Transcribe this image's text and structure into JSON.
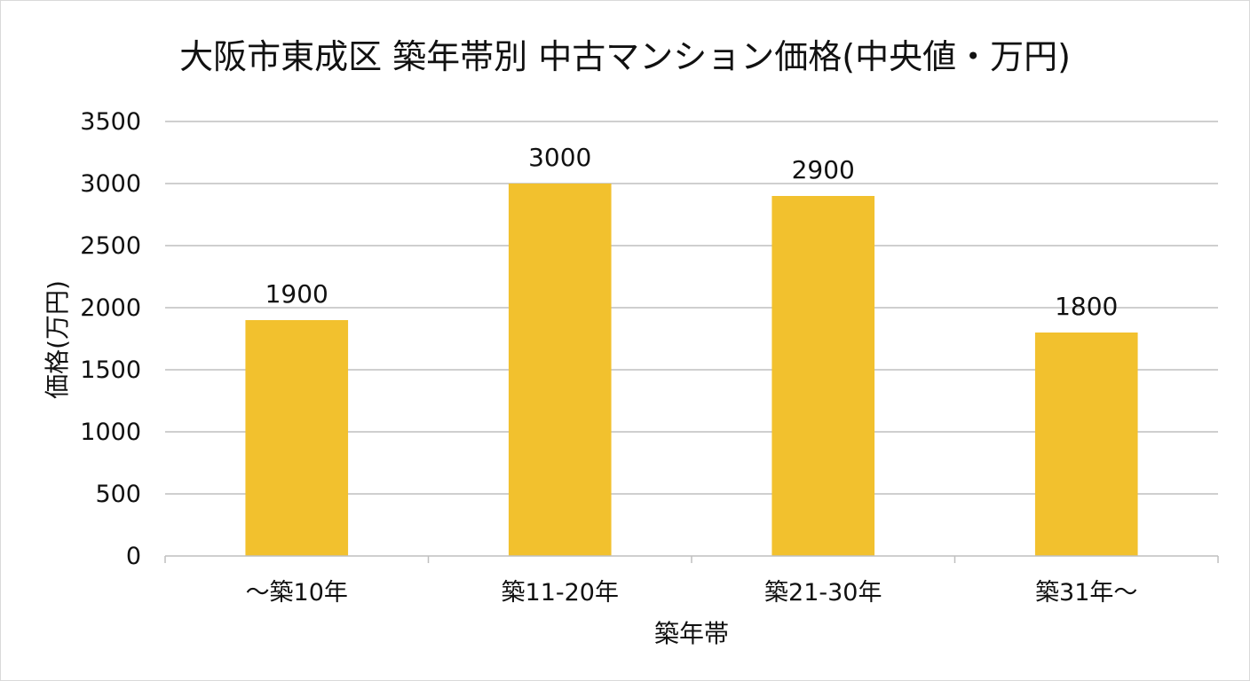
{
  "chart_data": {
    "type": "bar",
    "title": "大阪市東成区 築年帯別 中古マンション価格(中央値・万円)",
    "xlabel": "築年帯",
    "ylabel": "価格(万円)",
    "categories": [
      "～築10年",
      "築11-20年",
      "築21-30年",
      "築31年～"
    ],
    "values": [
      1900,
      3000,
      2900,
      1800
    ],
    "data_labels": [
      "1900",
      "3000",
      "2900",
      "1800"
    ],
    "ylim": [
      0,
      3500
    ],
    "yticks": [
      0,
      500,
      1000,
      1500,
      2000,
      2500,
      3000,
      3500
    ],
    "ytick_labels": [
      "0",
      "500",
      "1000",
      "1500",
      "2000",
      "2500",
      "3000",
      "3500"
    ],
    "grid": true,
    "bar_color": "#F2C12E"
  }
}
